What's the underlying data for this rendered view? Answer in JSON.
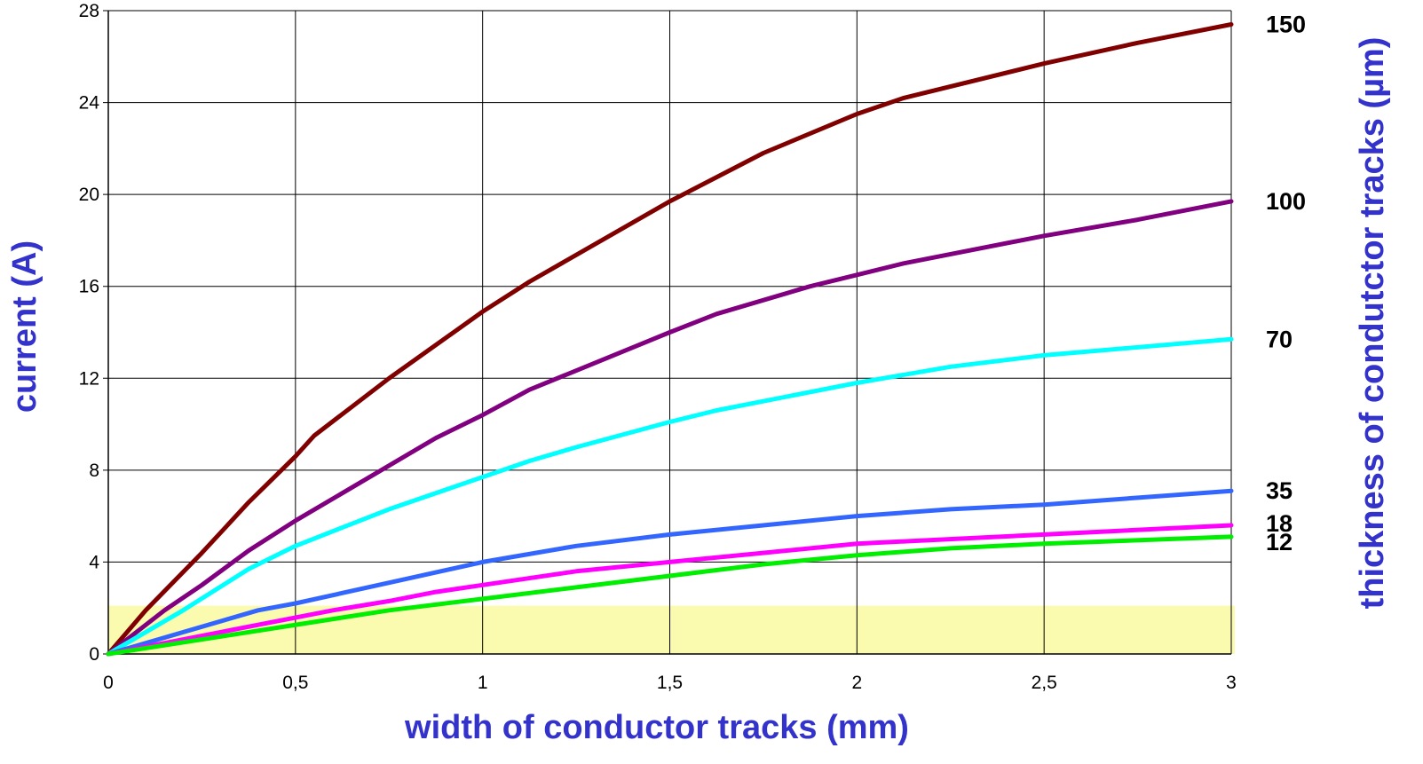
{
  "chart_data": {
    "type": "line",
    "title": "",
    "xlabel": "width of conductor tracks (mm)",
    "ylabel": "current  (A)",
    "y2label": "thickness of condutctor tracks (µm)",
    "xlim": [
      0,
      3
    ],
    "ylim": [
      0,
      28
    ],
    "x_ticks": [
      0,
      0.5,
      1,
      1.5,
      2,
      2.5,
      3
    ],
    "x_tick_labels": [
      "0",
      "0,5",
      "1",
      "1,5",
      "2",
      "2,5",
      "3"
    ],
    "y_ticks": [
      0,
      4,
      8,
      12,
      16,
      20,
      24,
      28
    ],
    "y_tick_labels": [
      "0",
      "4",
      "8",
      "12",
      "16",
      "20",
      "24",
      "28"
    ],
    "grid": true,
    "highlight_band": {
      "y_from": 0,
      "y_to": 2.1,
      "color": "#fbfbb0"
    },
    "colors": {
      "axis_title": "#3333cc",
      "grid": "#000000"
    },
    "series": [
      {
        "name": "150",
        "color": "#800000",
        "points": [
          [
            0,
            0
          ],
          [
            0.1,
            1.9
          ],
          [
            0.25,
            4.4
          ],
          [
            0.375,
            6.6
          ],
          [
            0.5,
            8.6
          ],
          [
            0.55,
            9.5
          ],
          [
            0.75,
            12.0
          ],
          [
            1.0,
            14.9
          ],
          [
            1.125,
            16.2
          ],
          [
            1.5,
            19.7
          ],
          [
            1.75,
            21.8
          ],
          [
            2.0,
            23.5
          ],
          [
            2.125,
            24.2
          ],
          [
            2.5,
            25.7
          ],
          [
            2.75,
            26.6
          ],
          [
            3.0,
            27.4
          ]
        ]
      },
      {
        "name": "100",
        "color": "#800080",
        "points": [
          [
            0,
            0
          ],
          [
            0.15,
            1.9
          ],
          [
            0.25,
            3.0
          ],
          [
            0.375,
            4.5
          ],
          [
            0.5,
            5.8
          ],
          [
            0.625,
            7.0
          ],
          [
            0.875,
            9.4
          ],
          [
            1.0,
            10.4
          ],
          [
            1.125,
            11.5
          ],
          [
            1.5,
            14.0
          ],
          [
            1.625,
            14.8
          ],
          [
            1.875,
            16.0
          ],
          [
            2.0,
            16.5
          ],
          [
            2.125,
            17.0
          ],
          [
            2.5,
            18.2
          ],
          [
            2.75,
            18.9
          ],
          [
            3.0,
            19.7
          ]
        ]
      },
      {
        "name": "70",
        "color": "#00ffff",
        "points": [
          [
            0,
            0
          ],
          [
            0.2,
            1.9
          ],
          [
            0.375,
            3.7
          ],
          [
            0.5,
            4.7
          ],
          [
            0.625,
            5.5
          ],
          [
            0.75,
            6.3
          ],
          [
            1.0,
            7.7
          ],
          [
            1.125,
            8.4
          ],
          [
            1.25,
            9.0
          ],
          [
            1.5,
            10.1
          ],
          [
            1.625,
            10.6
          ],
          [
            2.0,
            11.8
          ],
          [
            2.25,
            12.5
          ],
          [
            2.5,
            13.0
          ],
          [
            3.0,
            13.7
          ]
        ]
      },
      {
        "name": "35",
        "color": "#3366ff",
        "points": [
          [
            0,
            0
          ],
          [
            0.4,
            1.9
          ],
          [
            0.5,
            2.2
          ],
          [
            0.75,
            3.1
          ],
          [
            1.0,
            4.0
          ],
          [
            1.25,
            4.7
          ],
          [
            1.5,
            5.2
          ],
          [
            1.75,
            5.6
          ],
          [
            2.0,
            6.0
          ],
          [
            2.25,
            6.3
          ],
          [
            2.5,
            6.5
          ],
          [
            3.0,
            7.1
          ]
        ]
      },
      {
        "name": "18",
        "color": "#ff00ff",
        "points": [
          [
            0,
            0
          ],
          [
            0.6,
            1.9
          ],
          [
            0.75,
            2.3
          ],
          [
            0.875,
            2.7
          ],
          [
            1.0,
            3.0
          ],
          [
            1.25,
            3.6
          ],
          [
            1.5,
            4.0
          ],
          [
            1.75,
            4.4
          ],
          [
            2.0,
            4.8
          ],
          [
            2.5,
            5.2
          ],
          [
            3.0,
            5.6
          ]
        ]
      },
      {
        "name": "12",
        "color": "#00ee00",
        "points": [
          [
            0,
            0
          ],
          [
            0.75,
            1.9
          ],
          [
            1.0,
            2.4
          ],
          [
            1.25,
            2.9
          ],
          [
            1.5,
            3.4
          ],
          [
            1.75,
            3.9
          ],
          [
            2.0,
            4.3
          ],
          [
            2.25,
            4.6
          ],
          [
            2.5,
            4.8
          ],
          [
            3.0,
            5.1
          ]
        ]
      }
    ]
  }
}
